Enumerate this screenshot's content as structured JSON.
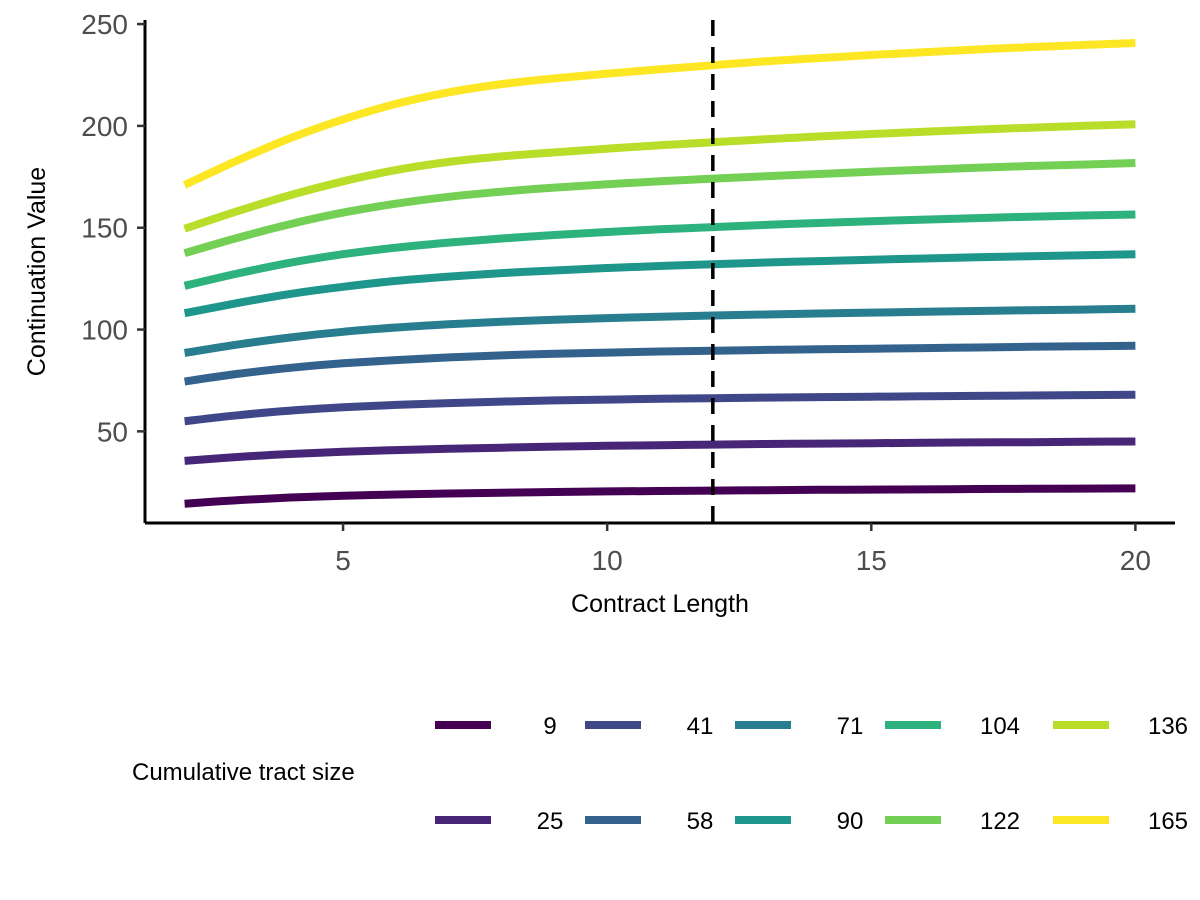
{
  "chart_data": {
    "type": "line",
    "xlabel": "Contract Length",
    "ylabel": "Continuation Value",
    "xlim": [
      1.25,
      20.75
    ],
    "ylim": [
      5,
      252
    ],
    "xticks": [
      5,
      10,
      15,
      20
    ],
    "yticks": [
      50,
      100,
      150,
      200,
      250
    ],
    "grid": false,
    "legend": {
      "title": "Cumulative tract size",
      "position": "bottom"
    },
    "reference_line": {
      "x": 12,
      "style": "dashed",
      "color": "#000000"
    },
    "x": [
      2,
      3,
      4,
      5,
      6,
      7,
      8,
      9,
      10,
      11,
      12,
      13,
      14,
      15,
      16,
      17,
      18,
      19,
      20
    ],
    "series": [
      {
        "name": "9",
        "color": "#440154",
        "values": [
          14.5,
          16.2,
          17.5,
          18.4,
          19.0,
          19.5,
          19.9,
          20.2,
          20.5,
          20.7,
          20.9,
          21.1,
          21.3,
          21.4,
          21.5,
          21.7,
          21.8,
          21.9,
          22.0
        ]
      },
      {
        "name": "25",
        "color": "#482677",
        "values": [
          35.5,
          37.4,
          38.9,
          40.0,
          40.8,
          41.5,
          42.0,
          42.5,
          42.9,
          43.2,
          43.5,
          43.8,
          44.0,
          44.2,
          44.4,
          44.6,
          44.7,
          44.9,
          45.0
        ]
      },
      {
        "name": "41",
        "color": "#3F4788",
        "values": [
          55.0,
          57.9,
          60.2,
          61.8,
          63.0,
          63.9,
          64.6,
          65.2,
          65.6,
          66.0,
          66.3,
          66.6,
          66.8,
          67.0,
          67.2,
          67.4,
          67.6,
          67.8,
          68.0
        ]
      },
      {
        "name": "58",
        "color": "#33638D",
        "values": [
          74.5,
          78.2,
          81.2,
          83.4,
          85.0,
          86.3,
          87.3,
          88.1,
          88.7,
          89.2,
          89.6,
          90.0,
          90.3,
          90.6,
          90.9,
          91.2,
          91.5,
          91.8,
          92.0
        ]
      },
      {
        "name": "71",
        "color": "#287D8E",
        "values": [
          88.5,
          92.6,
          96.1,
          98.9,
          101.0,
          102.6,
          103.8,
          104.8,
          105.6,
          106.3,
          106.9,
          107.4,
          107.9,
          108.3,
          108.7,
          109.1,
          109.5,
          109.8,
          110.2
        ]
      },
      {
        "name": "90",
        "color": "#1F968B",
        "values": [
          108.0,
          113.0,
          117.5,
          121.0,
          123.9,
          126.0,
          127.7,
          129.0,
          130.2,
          131.2,
          132.1,
          132.9,
          133.6,
          134.3,
          134.9,
          135.5,
          136.0,
          136.5,
          137.0
        ]
      },
      {
        "name": "104",
        "color": "#2DB27D",
        "values": [
          121.5,
          127.5,
          132.8,
          137.0,
          140.2,
          142.7,
          144.7,
          146.4,
          147.9,
          149.2,
          150.3,
          151.4,
          152.3,
          153.2,
          154.0,
          154.7,
          155.4,
          156.0,
          156.5
        ]
      },
      {
        "name": "122",
        "color": "#73D055",
        "values": [
          137.5,
          145.0,
          151.8,
          157.4,
          161.8,
          165.2,
          167.7,
          169.7,
          171.3,
          172.8,
          174.1,
          175.3,
          176.4,
          177.5,
          178.5,
          179.4,
          180.3,
          181.0,
          181.8
        ]
      },
      {
        "name": "136",
        "color": "#B8DE29",
        "values": [
          149.5,
          158.1,
          166.0,
          172.8,
          178.3,
          182.3,
          185.0,
          187.0,
          188.8,
          190.5,
          192.0,
          193.4,
          194.8,
          196.0,
          197.1,
          198.2,
          199.1,
          200.0,
          200.8
        ]
      },
      {
        "name": "165",
        "color": "#FDE725",
        "values": [
          171.0,
          183.0,
          194.0,
          203.2,
          210.8,
          216.5,
          220.5,
          223.3,
          225.7,
          227.8,
          229.8,
          231.7,
          233.3,
          234.8,
          236.2,
          237.5,
          238.7,
          239.7,
          240.7
        ]
      }
    ]
  }
}
